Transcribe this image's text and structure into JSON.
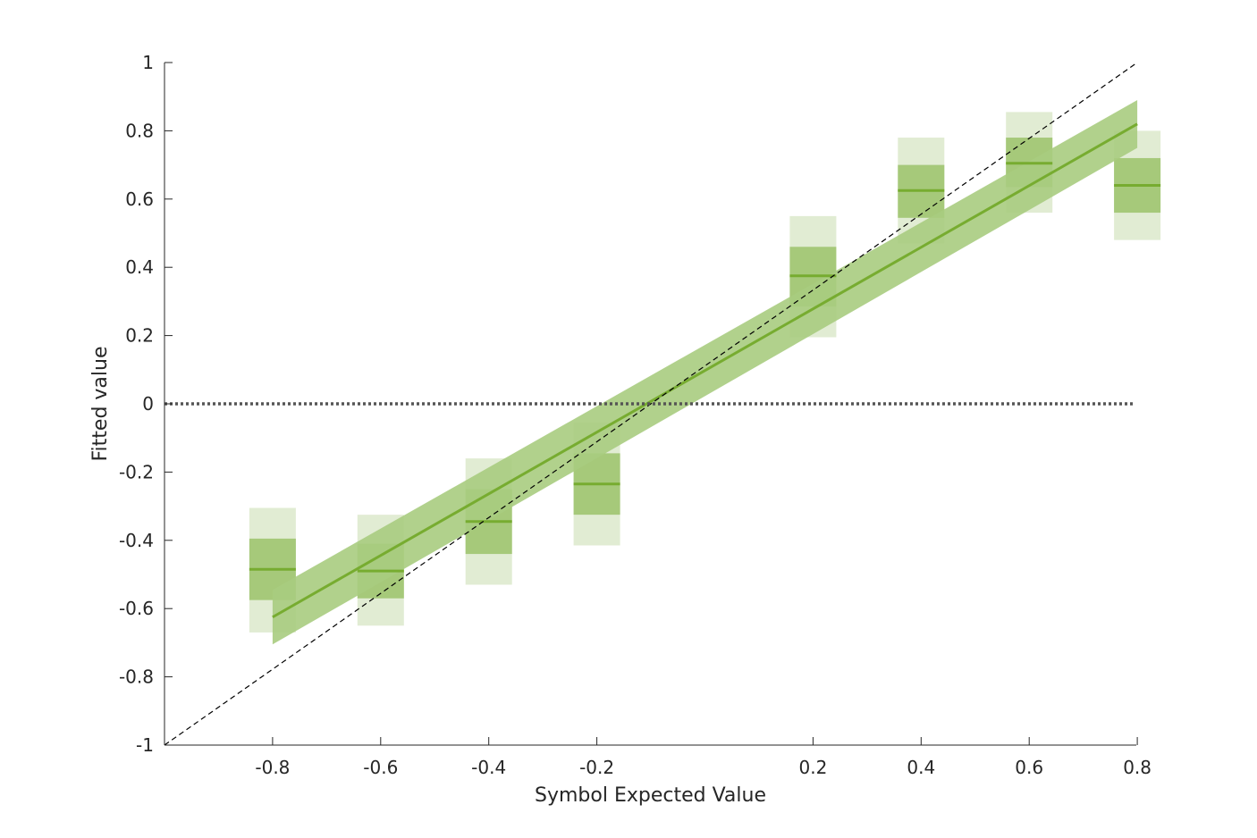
{
  "chart_data": {
    "type": "scatter",
    "title": "",
    "xlabel": "Symbol Expected Value",
    "ylabel": "Fitted value",
    "xlim": [
      -1,
      0.8
    ],
    "ylim": [
      -1,
      1
    ],
    "x_ticks": [
      {
        "value": -0.8,
        "label": "-0.8"
      },
      {
        "value": -0.6,
        "label": "-0.6"
      },
      {
        "value": -0.4,
        "label": "-0.4"
      },
      {
        "value": -0.2,
        "label": "-0.2"
      },
      {
        "value": 0.2,
        "label": "0.2"
      },
      {
        "value": 0.4,
        "label": "0.4"
      },
      {
        "value": 0.6,
        "label": "0.6"
      },
      {
        "value": 0.8,
        "label": "0.8"
      }
    ],
    "y_ticks": [
      {
        "value": -1,
        "label": "-1"
      },
      {
        "value": -0.8,
        "label": "-0.8"
      },
      {
        "value": -0.6,
        "label": "-0.6"
      },
      {
        "value": -0.4,
        "label": "-0.4"
      },
      {
        "value": -0.2,
        "label": "-0.2"
      },
      {
        "value": 0,
        "label": "0"
      },
      {
        "value": 0.2,
        "label": "0.2"
      },
      {
        "value": 0.4,
        "label": "0.4"
      },
      {
        "value": 0.6,
        "label": "0.6"
      },
      {
        "value": 0.8,
        "label": "0.8"
      },
      {
        "value": 1,
        "label": "1"
      }
    ],
    "grid": false,
    "legend": "none",
    "colors": {
      "mean": "#77ac30",
      "inner_band": "#a6c97a",
      "outer_band": "#e1ecd3",
      "fit_band": "#a8cc80",
      "fit_line": "#77ac30",
      "reference": "#000000",
      "zero_line": "#555555",
      "axis": "#262626"
    },
    "points": [
      {
        "x": -0.8,
        "mean": -0.485,
        "inner": [
          -0.575,
          -0.395
        ],
        "outer": [
          -0.67,
          -0.305
        ]
      },
      {
        "x": -0.6,
        "mean": -0.49,
        "inner": [
          -0.57,
          -0.41
        ],
        "outer": [
          -0.65,
          -0.325
        ]
      },
      {
        "x": -0.4,
        "mean": -0.345,
        "inner": [
          -0.44,
          -0.25
        ],
        "outer": [
          -0.53,
          -0.16
        ]
      },
      {
        "x": -0.2,
        "mean": -0.235,
        "inner": [
          -0.325,
          -0.145
        ],
        "outer": [
          -0.415,
          -0.055
        ]
      },
      {
        "x": 0.2,
        "mean": 0.375,
        "inner": [
          0.285,
          0.46
        ],
        "outer": [
          0.195,
          0.55
        ]
      },
      {
        "x": 0.4,
        "mean": 0.625,
        "inner": [
          0.545,
          0.7
        ],
        "outer": [
          0.47,
          0.78
        ]
      },
      {
        "x": 0.6,
        "mean": 0.705,
        "inner": [
          0.635,
          0.78
        ],
        "outer": [
          0.56,
          0.855
        ]
      },
      {
        "x": 0.8,
        "mean": 0.64,
        "inner": [
          0.56,
          0.72
        ],
        "outer": [
          0.48,
          0.8
        ]
      }
    ],
    "fit": {
      "x": [
        -0.8,
        0.8
      ],
      "y": [
        -0.625,
        0.82
      ],
      "band_upper": [
        -0.545,
        0.89
      ],
      "band_lower": [
        -0.705,
        0.75
      ]
    },
    "reference_line": {
      "x": [
        -1,
        0.8
      ],
      "y": [
        -1,
        1
      ]
    },
    "zero_line": {
      "y": 0
    }
  }
}
